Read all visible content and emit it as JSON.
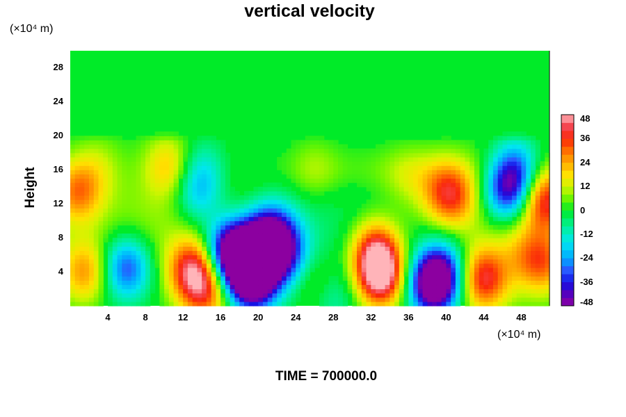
{
  "chart_data": {
    "type": "heatmap",
    "title": "vertical velocity",
    "ylabel": "Height",
    "y_unit_label": "(×10⁴ m)",
    "x_unit_label": "(×10⁴ m)",
    "xlim": [
      0,
      51
    ],
    "ylim": [
      0,
      30
    ],
    "x_ticks": [
      "4",
      "8",
      "12",
      "16",
      "20",
      "24",
      "28",
      "32",
      "36",
      "40",
      "44",
      "48"
    ],
    "y_ticks": [
      "4",
      "8",
      "12",
      "16",
      "20",
      "24",
      "28"
    ],
    "colorbar": {
      "vmin": -48,
      "vmax": 48,
      "step": 4,
      "tick_labels": [
        "48",
        "36",
        "24",
        "12",
        "0",
        "-12",
        "-24",
        "-36",
        "-48"
      ]
    },
    "features": [
      {
        "x": 1.5,
        "y": 4,
        "value": 24
      },
      {
        "x": 0.8,
        "y": 13.5,
        "value": 26
      },
      {
        "x": 6,
        "y": 4.5,
        "value": -34
      },
      {
        "x": 13,
        "y": 4.2,
        "value": 38
      },
      {
        "x": 14.5,
        "y": 1.5,
        "value": 26
      },
      {
        "x": 16.8,
        "y": 6.8,
        "value": -40
      },
      {
        "x": 18.5,
        "y": 5,
        "value": -46
      },
      {
        "x": 20.5,
        "y": 6.5,
        "value": -44
      },
      {
        "x": 19.5,
        "y": 3,
        "value": -46
      },
      {
        "x": 21.5,
        "y": 8.5,
        "value": -32
      },
      {
        "x": 23,
        "y": 6,
        "value": -24
      },
      {
        "x": 10.5,
        "y": 16.5,
        "value": 18
      },
      {
        "x": 13.5,
        "y": 13,
        "value": -18
      },
      {
        "x": 14,
        "y": 16,
        "value": -14
      },
      {
        "x": 32.5,
        "y": 6.5,
        "value": 34
      },
      {
        "x": 33,
        "y": 3.5,
        "value": 48
      },
      {
        "x": 38.5,
        "y": 2.4,
        "value": -46
      },
      {
        "x": 39.5,
        "y": 4,
        "value": -32
      },
      {
        "x": 44,
        "y": 3.2,
        "value": 36
      },
      {
        "x": 41,
        "y": 12.8,
        "value": 22
      },
      {
        "x": 39.5,
        "y": 13.5,
        "value": 18
      },
      {
        "x": 46.5,
        "y": 13.5,
        "value": -36
      },
      {
        "x": 47.5,
        "y": 16,
        "value": -28
      },
      {
        "x": 50.5,
        "y": 12.5,
        "value": 36
      },
      {
        "x": 50.5,
        "y": 5,
        "value": 22
      },
      {
        "x": 48.5,
        "y": 6,
        "value": 12
      },
      {
        "x": 26,
        "y": 3,
        "value": 10
      },
      {
        "x": 28,
        "y": 1,
        "value": -10
      },
      {
        "x": 26,
        "y": 16,
        "value": 8
      },
      {
        "x": 3,
        "y": 16.5,
        "value": 8
      },
      {
        "x": 36,
        "y": 15,
        "value": 8
      }
    ]
  },
  "time_label": "TIME = 700000.0"
}
